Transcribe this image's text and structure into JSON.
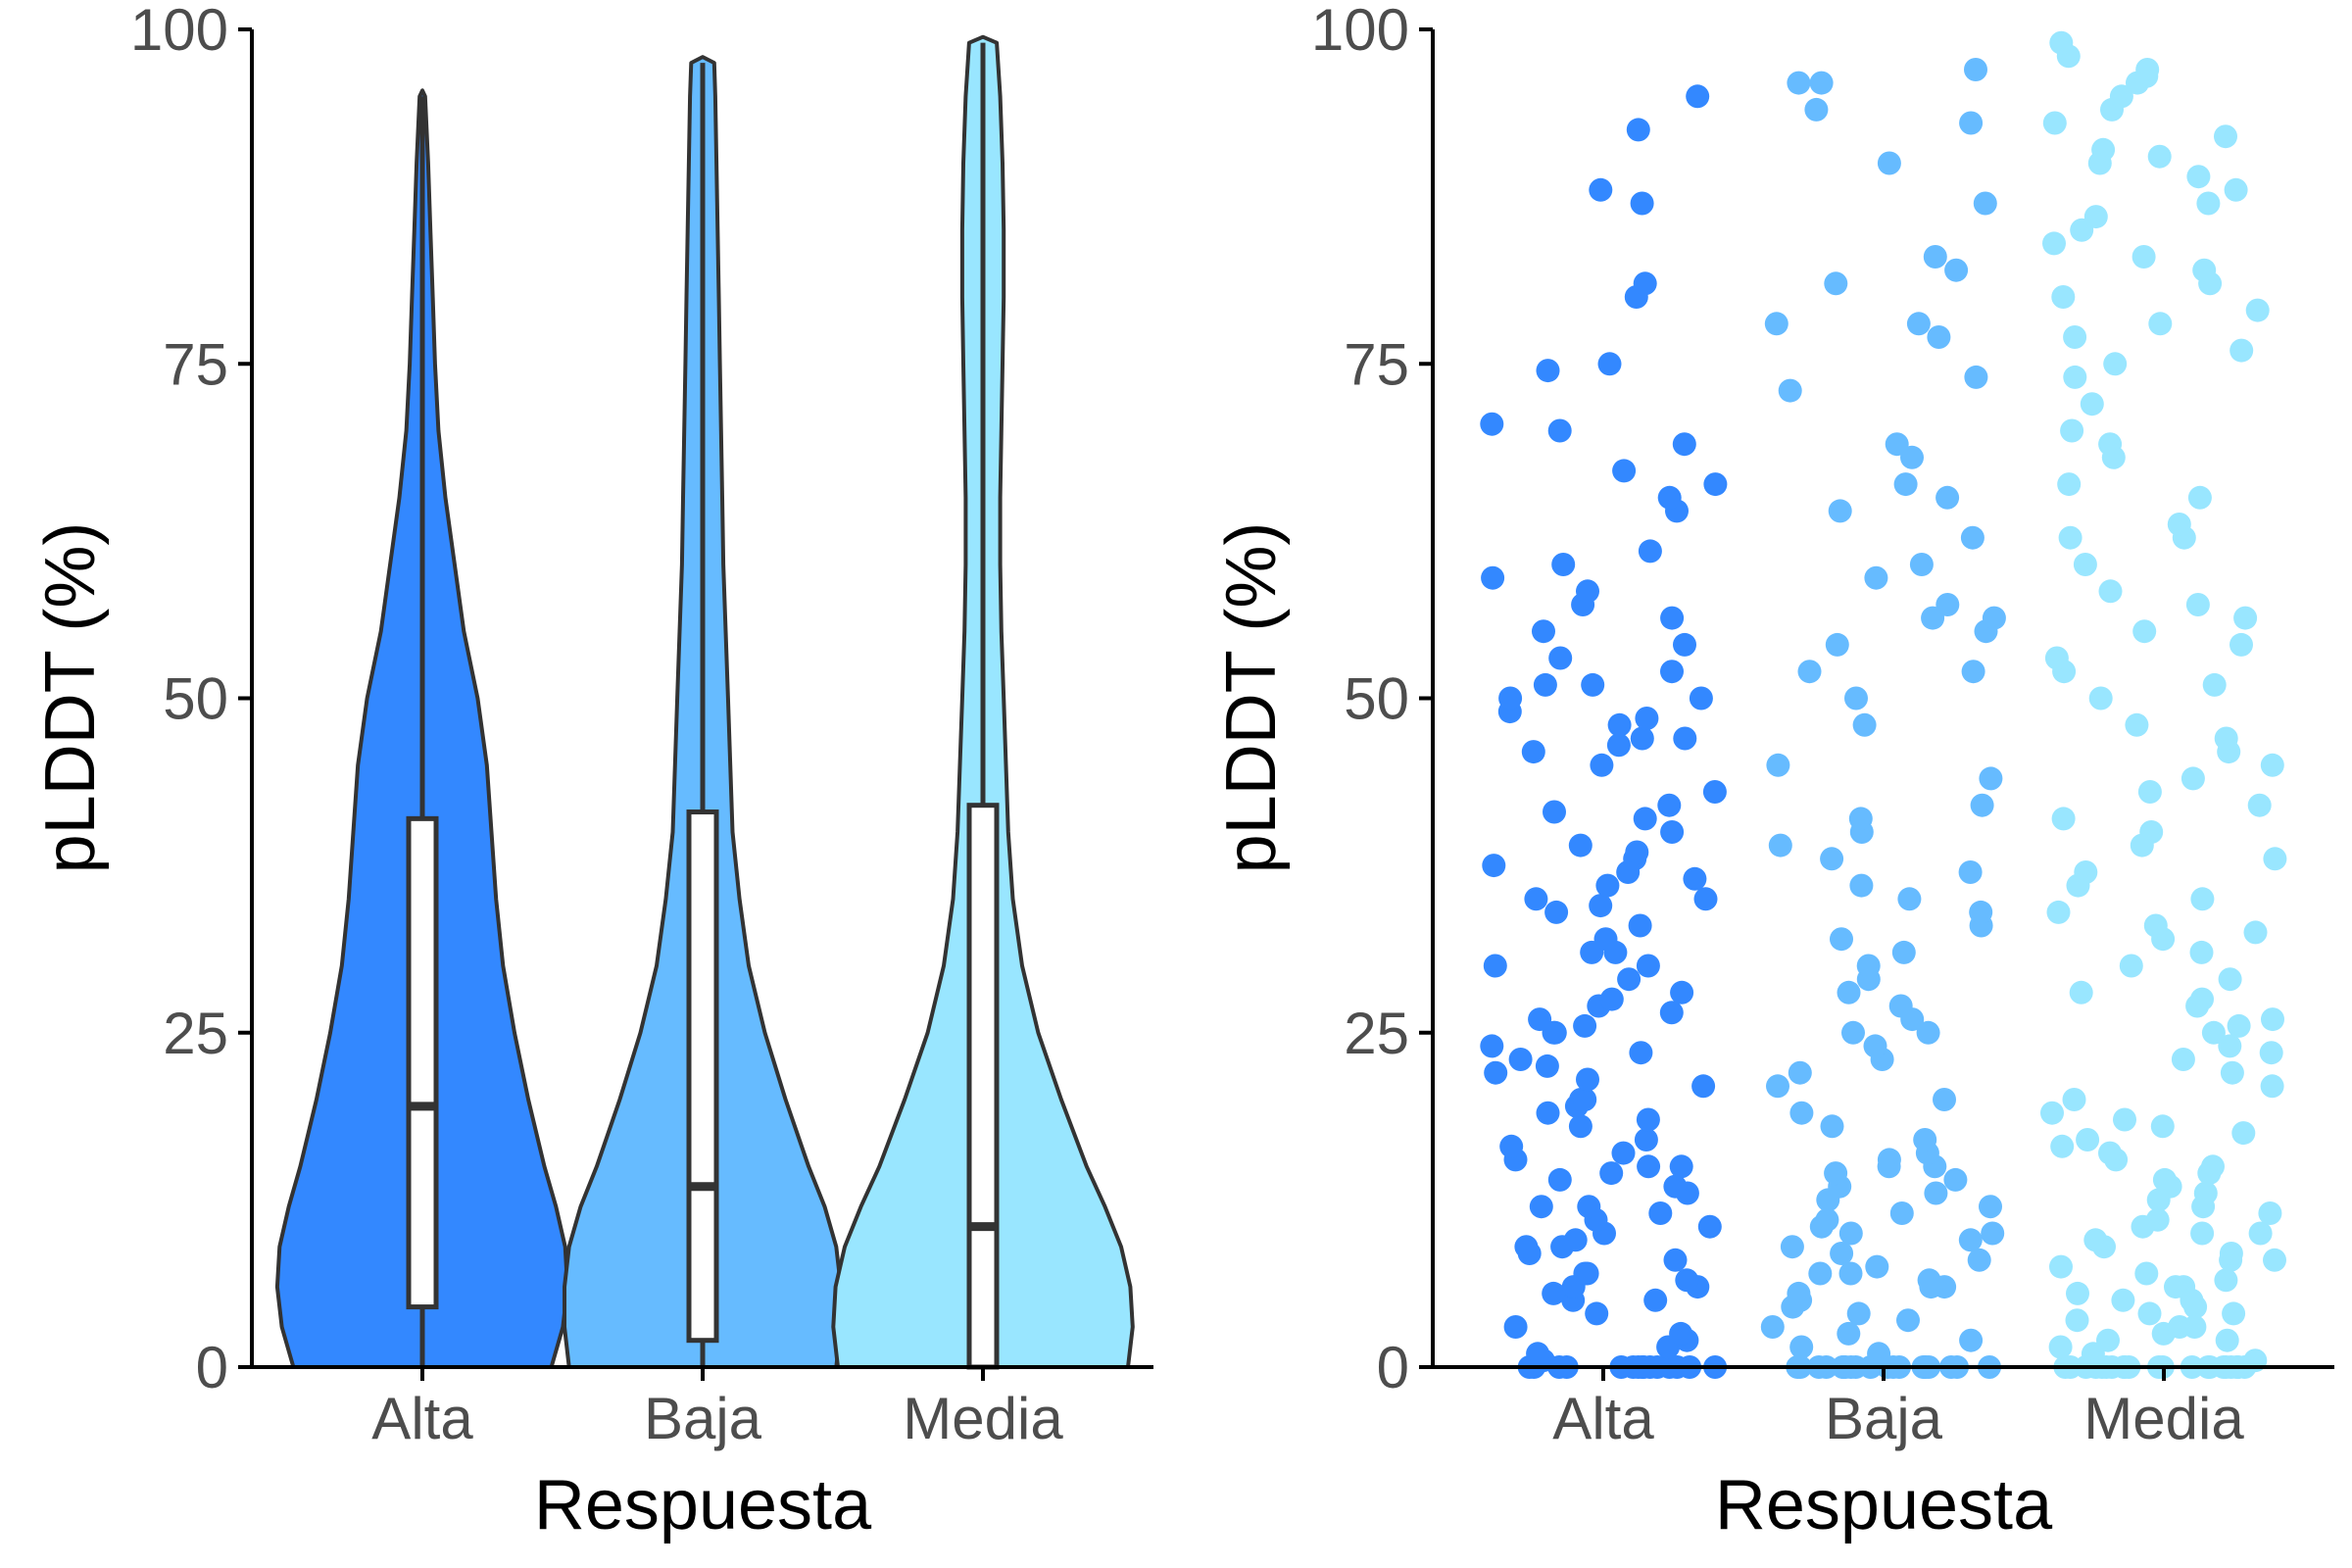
{
  "chart_data": [
    {
      "type": "violin",
      "xlabel": "Respuesta",
      "ylabel": "pLDDT (%)",
      "ylim": [
        0,
        100
      ],
      "yticks": [
        "0",
        "25",
        "50",
        "75",
        "100"
      ],
      "categories": [
        "Alta",
        "Baja",
        "Media"
      ],
      "colors": [
        "#3388ff",
        "#66bbff",
        "#99e6ff"
      ],
      "grid": false,
      "groups": [
        {
          "name": "Alta",
          "box": {
            "min": 0,
            "q1": 4.5,
            "median": 19.5,
            "q3": 41,
            "max": 95
          },
          "density": [
            [
              0,
              0.56
            ],
            [
              3,
              0.61
            ],
            [
              6,
              0.63
            ],
            [
              9,
              0.62
            ],
            [
              12,
              0.58
            ],
            [
              15,
              0.53
            ],
            [
              20,
              0.46
            ],
            [
              25,
              0.4
            ],
            [
              30,
              0.35
            ],
            [
              35,
              0.32
            ],
            [
              40,
              0.3
            ],
            [
              45,
              0.28
            ],
            [
              50,
              0.24
            ],
            [
              55,
              0.18
            ],
            [
              60,
              0.14
            ],
            [
              65,
              0.1
            ],
            [
              70,
              0.07
            ],
            [
              75,
              0.055
            ],
            [
              80,
              0.045
            ],
            [
              85,
              0.035
            ],
            [
              90,
              0.025
            ],
            [
              95,
              0.012
            ]
          ]
        },
        {
          "name": "Baja",
          "box": {
            "min": 0,
            "q1": 2,
            "median": 13.5,
            "q3": 41.5,
            "max": 97.5
          },
          "density": [
            [
              0,
              0.58
            ],
            [
              3,
              0.6
            ],
            [
              6,
              0.6
            ],
            [
              9,
              0.58
            ],
            [
              12,
              0.53
            ],
            [
              15,
              0.46
            ],
            [
              20,
              0.36
            ],
            [
              25,
              0.27
            ],
            [
              30,
              0.2
            ],
            [
              35,
              0.16
            ],
            [
              40,
              0.13
            ],
            [
              45,
              0.12
            ],
            [
              50,
              0.11
            ],
            [
              55,
              0.1
            ],
            [
              60,
              0.09
            ],
            [
              65,
              0.085
            ],
            [
              70,
              0.08
            ],
            [
              75,
              0.075
            ],
            [
              80,
              0.07
            ],
            [
              85,
              0.065
            ],
            [
              90,
              0.06
            ],
            [
              95,
              0.055
            ],
            [
              97.5,
              0.05
            ]
          ]
        },
        {
          "name": "Media",
          "box": {
            "min": 0,
            "q1": 0,
            "median": 10.5,
            "q3": 42,
            "max": 99
          },
          "density": [
            [
              0,
              0.63
            ],
            [
              3,
              0.65
            ],
            [
              6,
              0.64
            ],
            [
              9,
              0.6
            ],
            [
              12,
              0.53
            ],
            [
              15,
              0.45
            ],
            [
              20,
              0.34
            ],
            [
              25,
              0.24
            ],
            [
              30,
              0.17
            ],
            [
              35,
              0.13
            ],
            [
              40,
              0.11
            ],
            [
              45,
              0.1
            ],
            [
              50,
              0.09
            ],
            [
              55,
              0.08
            ],
            [
              60,
              0.075
            ],
            [
              65,
              0.075
            ],
            [
              70,
              0.08
            ],
            [
              75,
              0.085
            ],
            [
              80,
              0.09
            ],
            [
              85,
              0.09
            ],
            [
              90,
              0.085
            ],
            [
              95,
              0.075
            ],
            [
              99,
              0.06
            ]
          ]
        }
      ]
    },
    {
      "type": "scatter",
      "xlabel": "Respuesta",
      "ylabel": "pLDDT (%)",
      "ylim": [
        0,
        100
      ],
      "yticks": [
        "0",
        "25",
        "50",
        "75",
        "100"
      ],
      "categories": [
        "Alta",
        "Baja",
        "Media"
      ],
      "colors": [
        "#3388ff",
        "#66bbff",
        "#99e6ff"
      ],
      "grid": false,
      "points": [
        {
          "name": "Alta",
          "values": [
            0,
            0,
            0,
            0,
            0,
            0,
            0,
            0,
            0,
            0,
            0,
            0,
            0,
            0,
            0,
            0.5,
            1,
            1.5,
            2,
            2.5,
            3,
            4,
            5,
            5,
            5.5,
            6,
            6,
            6.5,
            7,
            7,
            8,
            8.5,
            9,
            9,
            9.5,
            10,
            10.5,
            11,
            11.5,
            12,
            12,
            13,
            13.5,
            14,
            14.5,
            15,
            15,
            15.5,
            16,
            16.5,
            17,
            18,
            18.5,
            19,
            19.5,
            20,
            20,
            21,
            21.5,
            22,
            22.5,
            23,
            23.5,
            24,
            25,
            25,
            25.5,
            26,
            26.5,
            27,
            27.5,
            28,
            29,
            30,
            30,
            31,
            31,
            32,
            33,
            34,
            34.5,
            35,
            35,
            36,
            36.5,
            37,
            37.5,
            38,
            38.5,
            39,
            40,
            41,
            41.5,
            42,
            43,
            45,
            46,
            46.5,
            47,
            47,
            48,
            48.5,
            49,
            50,
            50,
            51,
            51,
            52,
            53,
            54,
            55,
            56,
            57,
            58,
            59,
            60,
            61,
            64,
            65,
            66,
            67,
            69,
            70,
            70.5,
            74.5,
            75,
            80,
            81,
            87,
            88,
            92.5,
            95
          ]
        },
        {
          "name": "Baja",
          "values": [
            0,
            0,
            0,
            0,
            0,
            0,
            0,
            0,
            0,
            0,
            0,
            0,
            0,
            0,
            0,
            0,
            0,
            0,
            0,
            0,
            0.5,
            1,
            1.5,
            2,
            2.5,
            3,
            3.5,
            4,
            4.5,
            5,
            5,
            5.5,
            6,
            6,
            6.5,
            7,
            7,
            7.5,
            8,
            8.5,
            9,
            9.5,
            10,
            10,
            10.5,
            11,
            11.5,
            12,
            12.5,
            13,
            13.5,
            14,
            14.5,
            15,
            15,
            15.5,
            16,
            17,
            18,
            19,
            20,
            21,
            22,
            23,
            24,
            25,
            25,
            26,
            27,
            28,
            29,
            30,
            31,
            32,
            33,
            34,
            35,
            36,
            37,
            38,
            39,
            40,
            41,
            42,
            44,
            45,
            48,
            50,
            52,
            52,
            54,
            55,
            56,
            56,
            57,
            59,
            60,
            62,
            64,
            65,
            66,
            68,
            69,
            73,
            74,
            77,
            78,
            78,
            81,
            82,
            83,
            87,
            90,
            93,
            94,
            96,
            96,
            97
          ]
        },
        {
          "name": "Media",
          "values": [
            0,
            0,
            0,
            0,
            0,
            0,
            0,
            0,
            0,
            0,
            0,
            0,
            0,
            0,
            0,
            0,
            0,
            0,
            0,
            0,
            0,
            0.5,
            1,
            1.5,
            2,
            2,
            2.5,
            3,
            3,
            3.5,
            4,
            4,
            4.5,
            5,
            5,
            5.5,
            6,
            6,
            6.5,
            7,
            7.5,
            8,
            8,
            8.5,
            9,
            9.5,
            10,
            10,
            10.5,
            11,
            11.5,
            12,
            12.5,
            13,
            13.5,
            14,
            14.5,
            15,
            15.5,
            16,
            16.5,
            17,
            17.5,
            18,
            18.5,
            19,
            20,
            21,
            22,
            23,
            23.5,
            24,
            25,
            25.5,
            26,
            27,
            27.5,
            28,
            29,
            30,
            31,
            32,
            32.5,
            33,
            34,
            35,
            36,
            37,
            38,
            39,
            40,
            41,
            42,
            43,
            44,
            45,
            46,
            47,
            48,
            50,
            51,
            52,
            53,
            54,
            55,
            56,
            57,
            58,
            60,
            62,
            62,
            63,
            65,
            66,
            68,
            69,
            70,
            72,
            74,
            75,
            76,
            77,
            78,
            79,
            80,
            81,
            82,
            83,
            84,
            85,
            86,
            87,
            88,
            89,
            90,
            90.5,
            91,
            92,
            93,
            94,
            95,
            96,
            96.5,
            97,
            98,
            99
          ]
        }
      ]
    }
  ]
}
